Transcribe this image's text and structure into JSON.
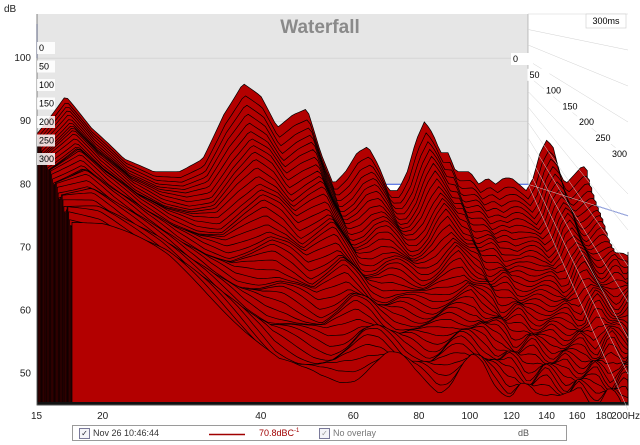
{
  "chart_data": {
    "type": "area",
    "title": "Waterfall",
    "ylabel": "dB",
    "xunit": "Hz",
    "time_unit": "ms",
    "ylim": [
      45,
      107
    ],
    "xlim": [
      15,
      200
    ],
    "y_ticks": [
      50,
      60,
      70,
      80,
      90,
      100
    ],
    "x_ticks": [
      "15",
      "20",
      "40",
      "60",
      "80",
      "100",
      "120",
      "140",
      "160",
      "180",
      "200Hz"
    ],
    "x_tick_values": [
      15,
      20,
      40,
      60,
      80,
      100,
      120,
      140,
      160,
      180,
      200
    ],
    "time_slices_ms": [
      0,
      50,
      100,
      150,
      200,
      250,
      300
    ],
    "time_axis_max_label": "300ms",
    "reference_level_db": 80,
    "fill_color": "#b30000",
    "line_color": "#000000",
    "reference_line_color": "#3355dd",
    "back_panel_color": "#e6e6e6",
    "front_curve": {
      "x": [
        15,
        17,
        19,
        22,
        25,
        28,
        31,
        34,
        37,
        40,
        43,
        46,
        49,
        52,
        55,
        58,
        61,
        64,
        67,
        70,
        73,
        76,
        79,
        82,
        85,
        88,
        91,
        94,
        97,
        100,
        104,
        108,
        112,
        116,
        120,
        124,
        128,
        132,
        136,
        140,
        144,
        148,
        152,
        156,
        160,
        164,
        168,
        172,
        176,
        180,
        185,
        190,
        195,
        200
      ],
      "y": [
        74,
        73,
        71,
        68,
        64,
        60,
        56,
        52,
        50,
        49,
        49,
        50,
        52,
        53,
        52,
        50,
        49,
        48,
        49,
        51,
        52,
        51,
        49,
        48,
        47,
        48,
        47,
        46,
        47,
        48,
        47,
        46,
        47,
        46,
        46,
        47,
        46,
        45,
        46,
        46,
        45,
        46,
        46,
        45,
        46,
        46,
        45,
        46,
        46,
        46,
        46,
        45,
        45,
        45
      ]
    },
    "back_curve": {
      "x": [
        15,
        17,
        19,
        22,
        25,
        28,
        31,
        34,
        37,
        40,
        43,
        46,
        49,
        52,
        55,
        58,
        61,
        64,
        67,
        70,
        73,
        76,
        79,
        82,
        85,
        88,
        91,
        94,
        97,
        100,
        104,
        108,
        112,
        116,
        120,
        124,
        128,
        132,
        136,
        140,
        144,
        148,
        152,
        156,
        160,
        164,
        168
      ],
      "y": [
        88,
        94,
        89,
        84,
        82,
        82,
        84,
        91,
        96,
        94,
        89,
        91,
        92,
        85,
        80,
        82,
        85,
        86,
        83,
        79,
        79,
        82,
        87,
        90,
        88,
        85,
        85,
        82,
        82,
        82,
        80,
        81,
        80,
        81,
        81,
        80,
        79,
        81,
        85,
        87,
        86,
        82,
        80,
        81,
        82,
        83,
        82
      ]
    }
  },
  "legend": {
    "checkbox_mark": "✓",
    "measurement_label": "Nov 26 10:46:44",
    "level_value": "70.8dBC",
    "level_superscript": "-1",
    "overlay_label": "No overlay",
    "unit": "dB",
    "line_color": "#a00000"
  }
}
